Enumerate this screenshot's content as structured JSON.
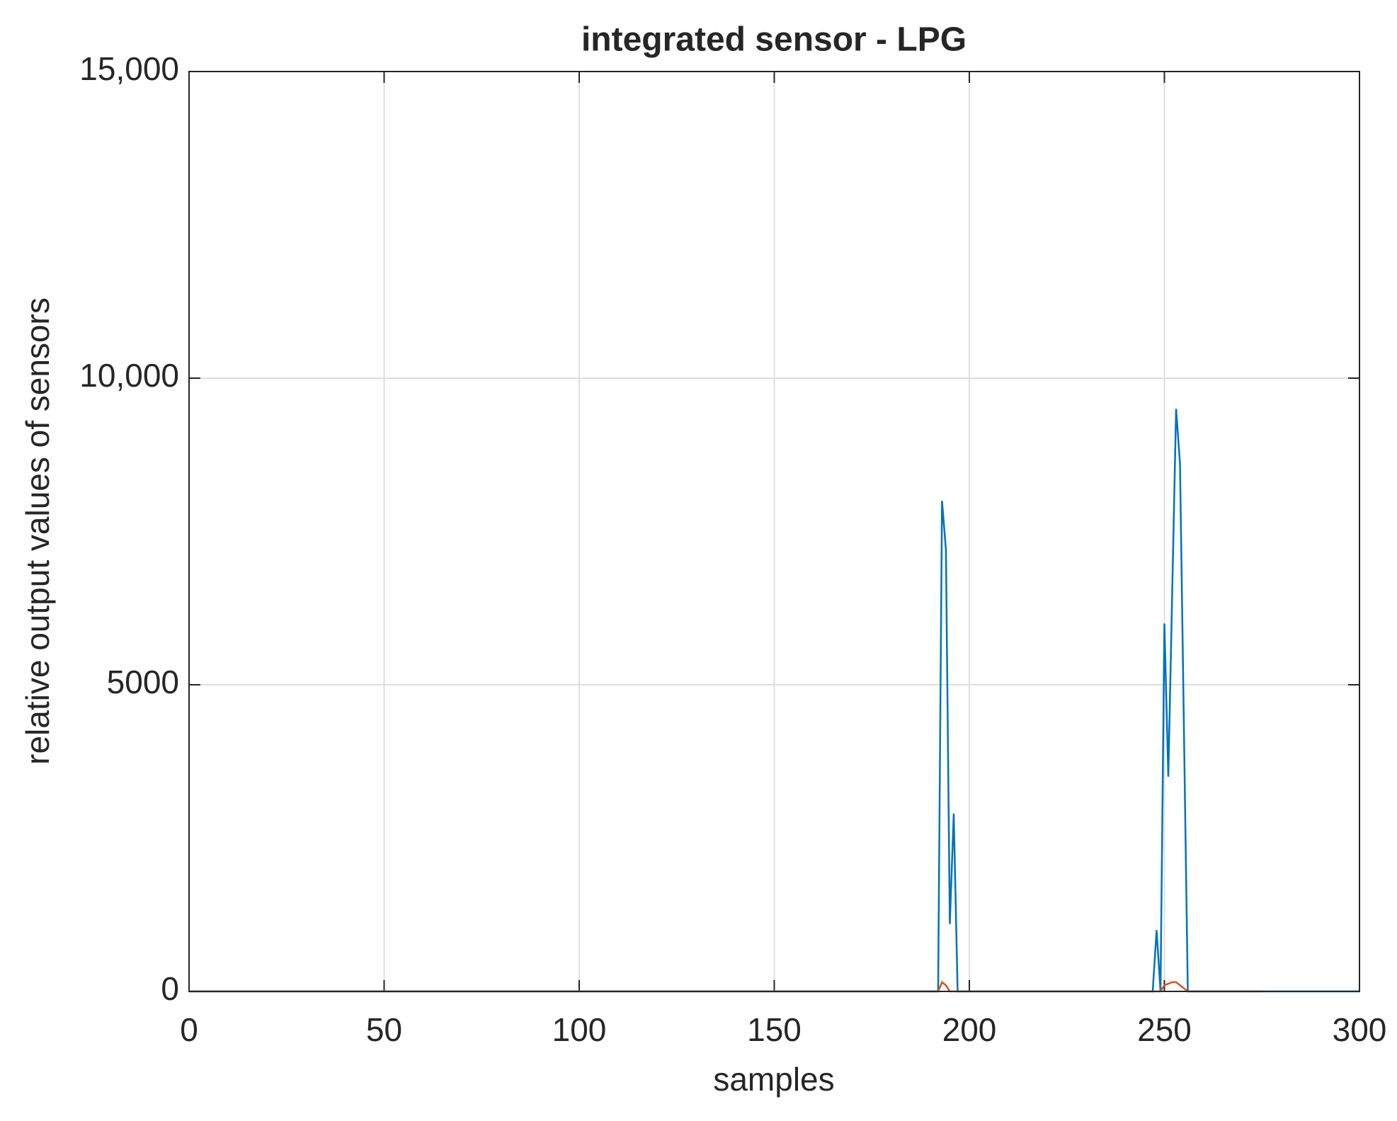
{
  "chart_data": {
    "type": "line",
    "title": "integrated sensor - LPG",
    "x_label": "samples",
    "y_label": "relative output values of sensors",
    "xlim": [
      0,
      300
    ],
    "xticks": [
      0,
      50,
      100,
      150,
      200,
      250,
      300
    ],
    "ylim": [
      0,
      15000
    ],
    "yticks": [
      0,
      5000,
      {
        "value": 10000,
        "label": "10,000"
      },
      {
        "value": 15000,
        "label": "15,000"
      }
    ],
    "grid": true,
    "series": [
      {
        "color": "#0072bd",
        "x": [
          0,
          192,
          193,
          194,
          195,
          196,
          197,
          247,
          248,
          249,
          250,
          251,
          253,
          254,
          256,
          300
        ],
        "values": [
          0,
          0,
          8000,
          7200,
          1100,
          2900,
          0,
          0,
          1000,
          0,
          6000,
          3500,
          9500,
          8600,
          0,
          0
        ]
      },
      {
        "color": "#d95319",
        "x": [
          0,
          192,
          193,
          194,
          195,
          249,
          250,
          252,
          253,
          255,
          256,
          275
        ],
        "values": [
          0,
          0,
          150,
          100,
          0,
          0,
          100,
          150,
          150,
          50,
          0,
          0
        ]
      }
    ]
  }
}
